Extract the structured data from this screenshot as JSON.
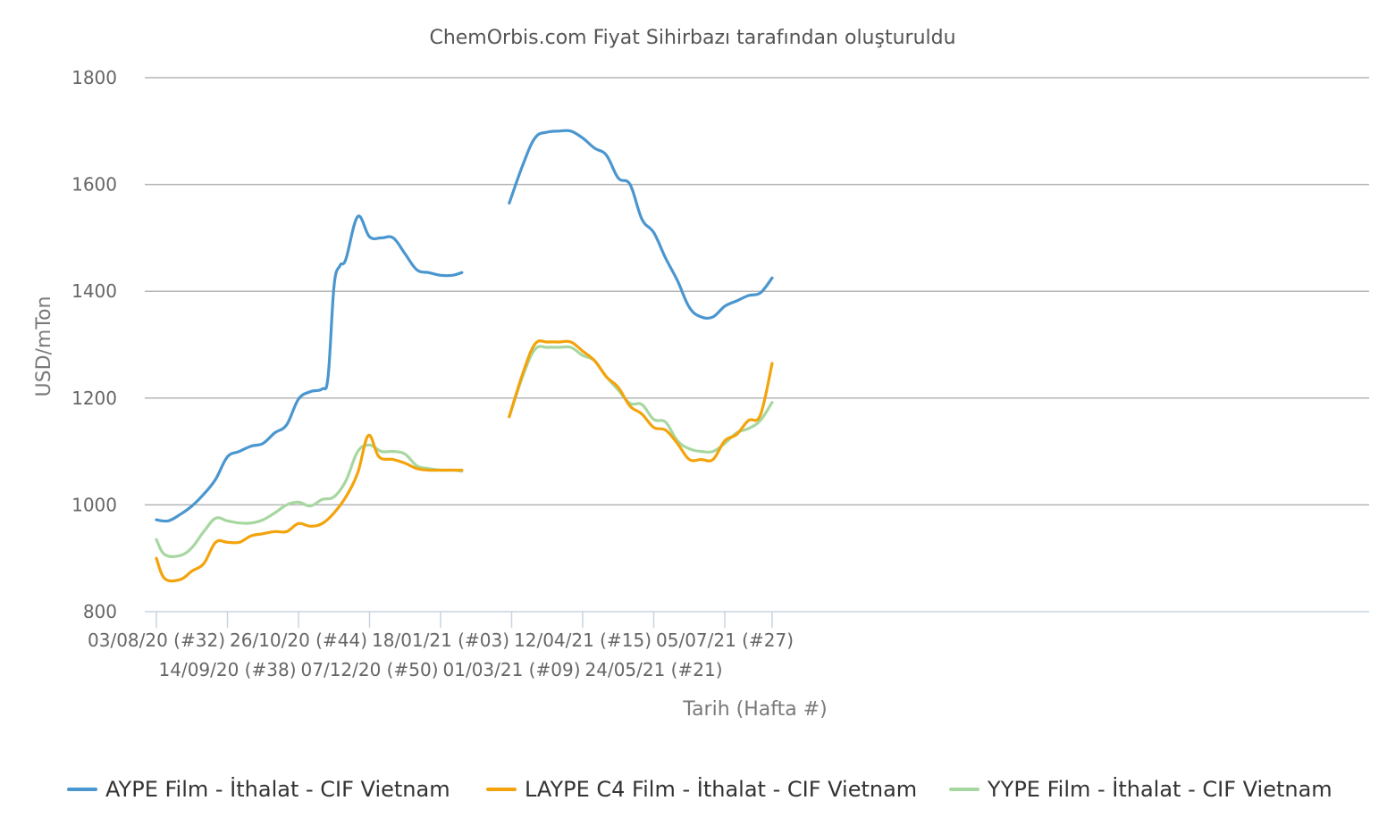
{
  "subtitle": "ChemOrbis.com Fiyat Sihirbazı tarafından oluşturuldu",
  "colors": {
    "aype": "#4a96cf",
    "laype": "#f3a30b",
    "yype": "#a7d7a0",
    "grid": "#b5b5b5",
    "axis": "#c9d3e0"
  },
  "chart_data": {
    "type": "line",
    "title": "",
    "subtitle": "ChemOrbis.com Fiyat Sihirbazı tarafından oluşturuldu",
    "xlabel": "Tarih (Hafta #)",
    "ylabel": "USD/mTon",
    "ylim": [
      800,
      1800
    ],
    "yticks": [
      "800",
      "1000",
      "1200",
      "1400",
      "1600",
      "1800"
    ],
    "grid": true,
    "legend_position": "bottom",
    "x_range_weeks": [
      32,
      82
    ],
    "xticks": [
      {
        "label": "03/08/20 (#32)",
        "week": 32,
        "row": 1
      },
      {
        "label": "14/09/20 (#38)",
        "week": 38,
        "row": 2
      },
      {
        "label": "26/10/20 (#44)",
        "week": 44,
        "row": 1
      },
      {
        "label": "07/12/20 (#50)",
        "week": 50,
        "row": 2
      },
      {
        "label": "18/01/21 (#03)",
        "week": 56,
        "row": 1
      },
      {
        "label": "01/03/21 (#09)",
        "week": 62,
        "row": 2
      },
      {
        "label": "12/04/21 (#15)",
        "week": 68,
        "row": 1
      },
      {
        "label": "24/05/21 (#21)",
        "week": 74,
        "row": 2
      },
      {
        "label": "05/07/21 (#27)",
        "week": 80,
        "row": 1
      }
    ],
    "series": [
      {
        "name": "AYPE Film - İthalat - CIF Vietnam",
        "color": "#4a96cf",
        "segments": [
          [
            [
              32.0,
              972
            ],
            [
              33.0,
              970
            ],
            [
              34.0,
              982
            ],
            [
              35.0,
              998
            ],
            [
              36.0,
              1020
            ],
            [
              37.0,
              1048
            ],
            [
              38.0,
              1090
            ],
            [
              39.0,
              1100
            ],
            [
              40.0,
              1110
            ],
            [
              41.0,
              1115
            ],
            [
              42.0,
              1135
            ],
            [
              43.0,
              1150
            ],
            [
              44.0,
              1198
            ],
            [
              45.0,
              1212
            ],
            [
              46.0,
              1217
            ],
            [
              46.5,
              1240
            ],
            [
              47.0,
              1410
            ],
            [
              47.5,
              1448
            ],
            [
              48.0,
              1460
            ],
            [
              49.0,
              1540
            ],
            [
              50.0,
              1502
            ],
            [
              51.0,
              1500
            ],
            [
              52.0,
              1500
            ],
            [
              53.0,
              1470
            ],
            [
              54.0,
              1440
            ],
            [
              55.0,
              1435
            ],
            [
              56.0,
              1430
            ],
            [
              57.0,
              1430
            ],
            [
              57.8,
              1435
            ]
          ],
          [
            [
              61.8,
              1565
            ],
            [
              63.0,
              1640
            ],
            [
              64.0,
              1688
            ],
            [
              65.0,
              1698
            ],
            [
              66.0,
              1700
            ],
            [
              67.0,
              1700
            ],
            [
              68.0,
              1687
            ],
            [
              69.0,
              1668
            ],
            [
              70.0,
              1655
            ],
            [
              71.0,
              1612
            ],
            [
              72.0,
              1600
            ],
            [
              73.0,
              1535
            ],
            [
              74.0,
              1510
            ],
            [
              75.0,
              1462
            ],
            [
              76.0,
              1420
            ],
            [
              77.0,
              1370
            ],
            [
              78.0,
              1352
            ],
            [
              79.0,
              1352
            ],
            [
              80.0,
              1372
            ],
            [
              81.0,
              1382
            ],
            [
              82.0,
              1392
            ],
            [
              83.0,
              1397
            ],
            [
              84.0,
              1425
            ]
          ]
        ]
      },
      {
        "name": "LAYPE C4 Film - İthalat - CIF Vietnam",
        "color": "#f3a30b",
        "segments": [
          [
            [
              32.0,
              900
            ],
            [
              32.7,
              862
            ],
            [
              34.0,
              860
            ],
            [
              35.0,
              876
            ],
            [
              36.0,
              890
            ],
            [
              37.0,
              930
            ],
            [
              38.0,
              930
            ],
            [
              39.0,
              930
            ],
            [
              40.0,
              942
            ],
            [
              41.0,
              946
            ],
            [
              42.0,
              950
            ],
            [
              43.0,
              950
            ],
            [
              44.0,
              965
            ],
            [
              45.0,
              960
            ],
            [
              46.0,
              965
            ],
            [
              47.0,
              985
            ],
            [
              48.0,
              1015
            ],
            [
              49.0,
              1060
            ],
            [
              49.9,
              1130
            ],
            [
              50.8,
              1090
            ],
            [
              52.0,
              1085
            ],
            [
              53.0,
              1078
            ],
            [
              54.0,
              1068
            ],
            [
              55.0,
              1065
            ],
            [
              56.0,
              1065
            ],
            [
              57.0,
              1065
            ],
            [
              57.8,
              1065
            ]
          ],
          [
            [
              61.8,
              1165
            ],
            [
              63.0,
              1250
            ],
            [
              64.0,
              1302
            ],
            [
              65.0,
              1305
            ],
            [
              66.0,
              1305
            ],
            [
              67.0,
              1305
            ],
            [
              68.0,
              1288
            ],
            [
              69.0,
              1270
            ],
            [
              70.0,
              1240
            ],
            [
              71.0,
              1220
            ],
            [
              72.0,
              1185
            ],
            [
              73.0,
              1170
            ],
            [
              74.0,
              1145
            ],
            [
              75.0,
              1140
            ],
            [
              76.0,
              1115
            ],
            [
              77.0,
              1085
            ],
            [
              78.0,
              1085
            ],
            [
              79.0,
              1085
            ],
            [
              80.0,
              1120
            ],
            [
              81.0,
              1132
            ],
            [
              82.0,
              1158
            ],
            [
              83.0,
              1168
            ],
            [
              84.0,
              1265
            ]
          ]
        ]
      },
      {
        "name": "YYPE Film - İthalat - CIF Vietnam",
        "color": "#a7d7a0",
        "segments": [
          [
            [
              32.0,
              935
            ],
            [
              32.7,
              907
            ],
            [
              34.0,
              905
            ],
            [
              35.0,
              920
            ],
            [
              36.0,
              950
            ],
            [
              37.0,
              975
            ],
            [
              38.0,
              970
            ],
            [
              39.0,
              966
            ],
            [
              40.0,
              966
            ],
            [
              41.0,
              972
            ],
            [
              42.0,
              985
            ],
            [
              43.0,
              1000
            ],
            [
              44.0,
              1005
            ],
            [
              45.0,
              998
            ],
            [
              46.0,
              1010
            ],
            [
              47.0,
              1015
            ],
            [
              48.0,
              1045
            ],
            [
              49.0,
              1100
            ],
            [
              50.0,
              1112
            ],
            [
              51.0,
              1100
            ],
            [
              52.0,
              1100
            ],
            [
              53.0,
              1095
            ],
            [
              54.0,
              1073
            ],
            [
              55.0,
              1068
            ],
            [
              56.0,
              1065
            ],
            [
              57.0,
              1065
            ],
            [
              57.8,
              1063
            ]
          ],
          [
            [
              61.8,
              1165
            ],
            [
              63.0,
              1245
            ],
            [
              64.0,
              1292
            ],
            [
              65.0,
              1295
            ],
            [
              66.0,
              1295
            ],
            [
              67.0,
              1295
            ],
            [
              68.0,
              1280
            ],
            [
              69.0,
              1270
            ],
            [
              70.0,
              1240
            ],
            [
              71.0,
              1215
            ],
            [
              72.0,
              1190
            ],
            [
              73.0,
              1188
            ],
            [
              74.0,
              1160
            ],
            [
              75.0,
              1155
            ],
            [
              76.0,
              1120
            ],
            [
              77.0,
              1105
            ],
            [
              78.0,
              1100
            ],
            [
              79.0,
              1100
            ],
            [
              80.0,
              1115
            ],
            [
              81.0,
              1135
            ],
            [
              82.0,
              1143
            ],
            [
              83.0,
              1158
            ],
            [
              84.0,
              1192
            ]
          ]
        ]
      }
    ]
  }
}
